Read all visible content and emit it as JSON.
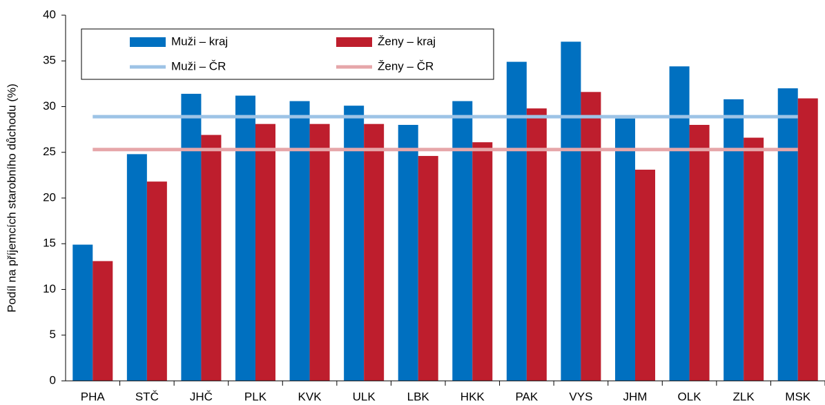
{
  "chart_data": {
    "type": "bar",
    "y_label": "Podíl na příjemcích starobního důchodu (%)",
    "categories": [
      "PHA",
      "STČ",
      "JHČ",
      "PLK",
      "KVK",
      "ULK",
      "LBK",
      "HKK",
      "PAK",
      "VYS",
      "JHM",
      "OLK",
      "ZLK",
      "MSK"
    ],
    "series": [
      {
        "name": "Muži – kraj",
        "type": "bar",
        "color": "#0070c0",
        "values": [
          14.9,
          24.8,
          31.4,
          31.2,
          30.6,
          30.1,
          28.0,
          30.6,
          34.9,
          37.1,
          28.7,
          34.4,
          30.8,
          32.0
        ]
      },
      {
        "name": "Ženy – kraj",
        "type": "bar",
        "color": "#be1e2d",
        "values": [
          13.1,
          21.8,
          26.9,
          28.1,
          28.1,
          28.1,
          24.6,
          26.1,
          29.8,
          31.6,
          23.1,
          28.0,
          26.6,
          30.9
        ]
      },
      {
        "name": "Muži – ČR",
        "type": "line",
        "color": "#9dc3e6",
        "values": [
          28.9,
          28.9,
          28.9,
          28.9,
          28.9,
          28.9,
          28.9,
          28.9,
          28.9,
          28.9,
          28.9,
          28.9,
          28.9,
          28.9
        ]
      },
      {
        "name": "Ženy – ČR",
        "type": "line",
        "color": "#e6a6a9",
        "values": [
          25.3,
          25.3,
          25.3,
          25.3,
          25.3,
          25.3,
          25.3,
          25.3,
          25.3,
          25.3,
          25.3,
          25.3,
          25.3,
          25.3
        ]
      }
    ],
    "ylim": [
      0,
      40
    ],
    "yticks": [
      0,
      5,
      10,
      15,
      20,
      25,
      30,
      35,
      40
    ],
    "legend": "top-left"
  }
}
